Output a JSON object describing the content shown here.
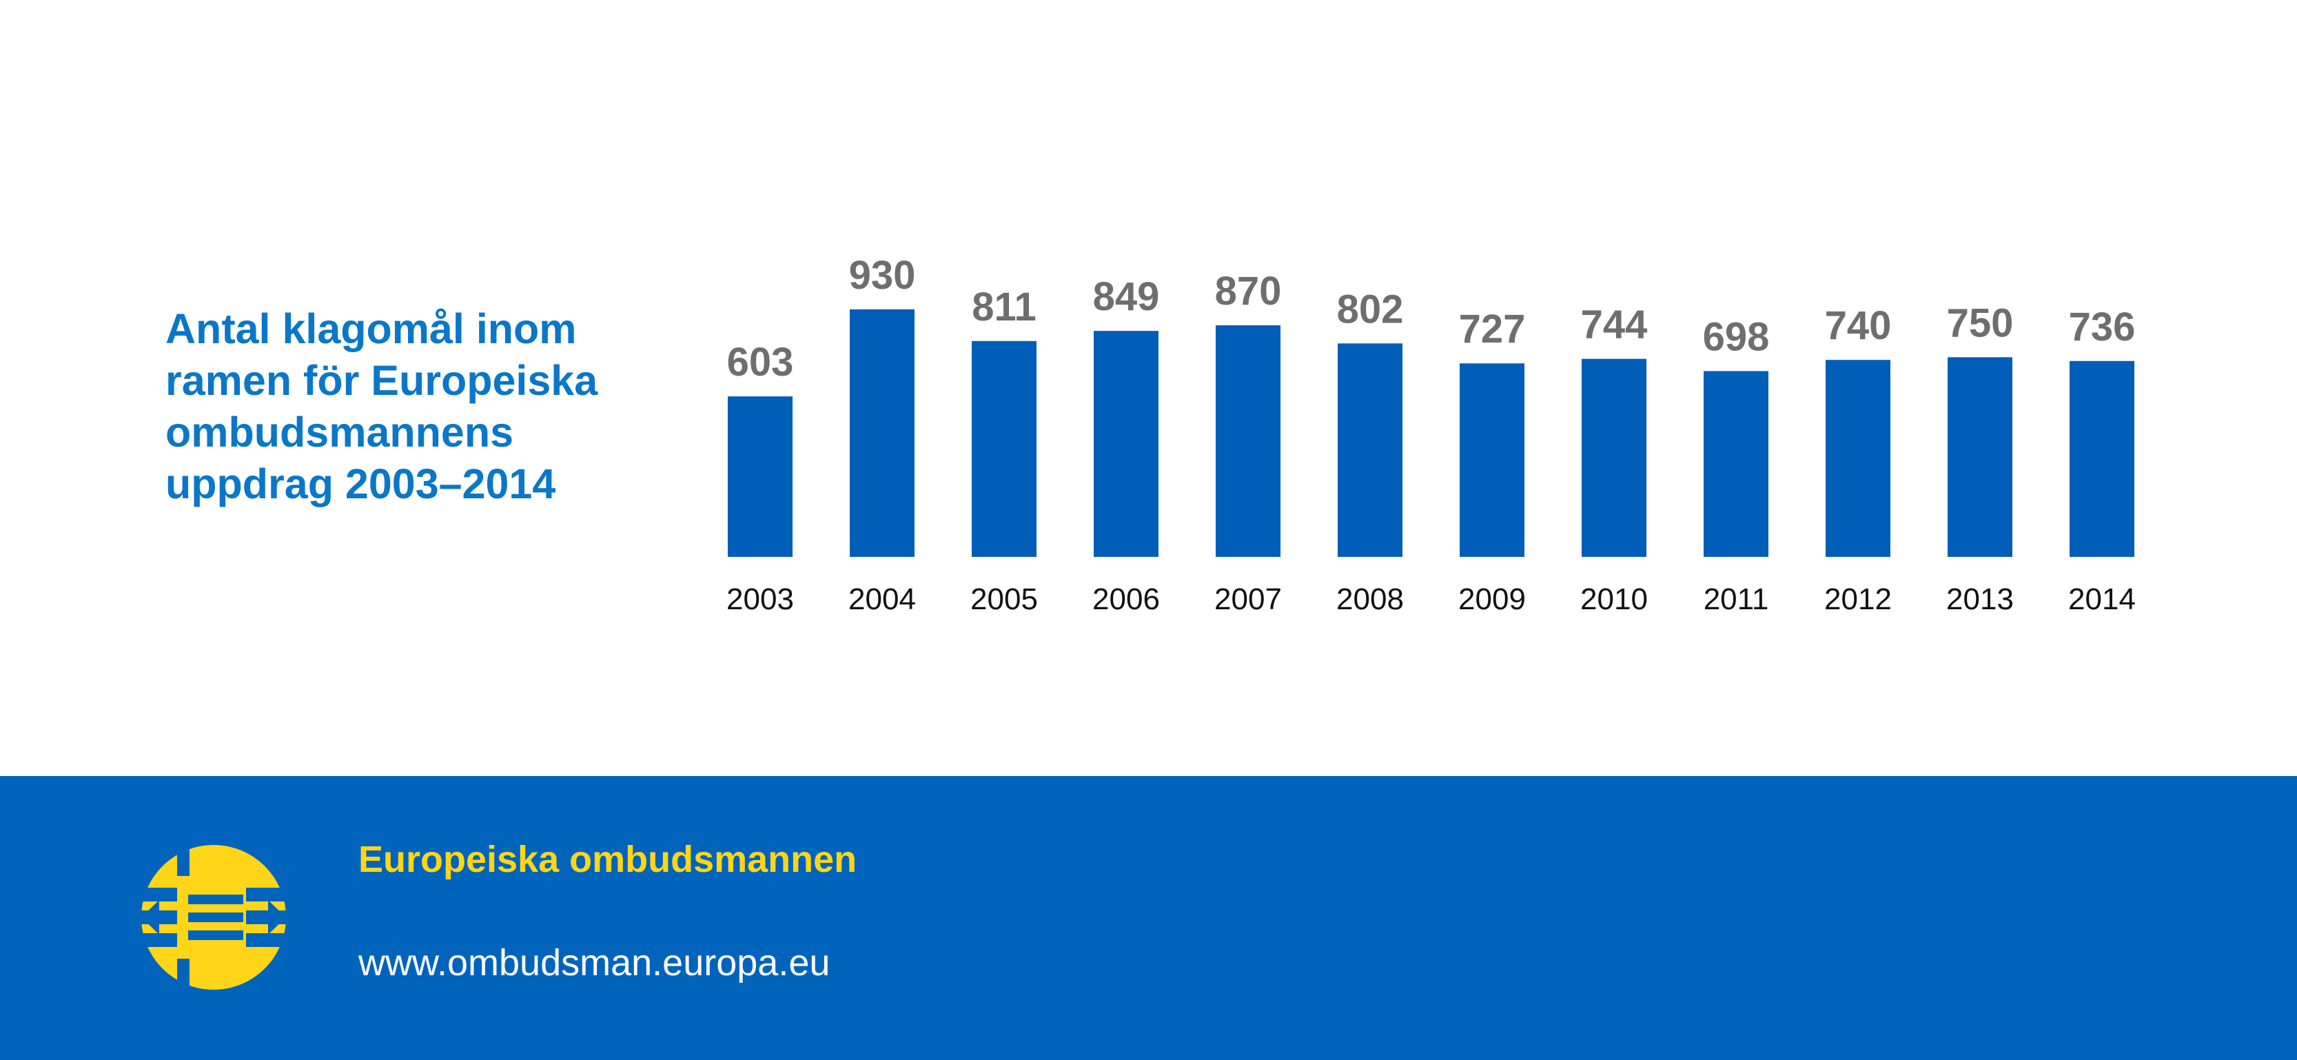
{
  "chart_data": {
    "type": "bar",
    "title": "Antal klagomål inom ramen för Europeiska ombudsmannens uppdrag 2003–2014",
    "categories": [
      "2003",
      "2004",
      "2005",
      "2006",
      "2007",
      "2008",
      "2009",
      "2010",
      "2011",
      "2012",
      "2013",
      "2014"
    ],
    "values": [
      603,
      930,
      811,
      849,
      870,
      802,
      727,
      744,
      698,
      740,
      750,
      736
    ],
    "xlabel": "",
    "ylabel": "",
    "ylim": [
      0,
      1000
    ],
    "grid": false,
    "data_labels": true,
    "colors": {
      "bar": "#005eb8",
      "value_label": "#6e6e6e",
      "title": "#0a77c8"
    }
  },
  "footer": {
    "org_name": "Europeiska ombudsmannen",
    "url": "www.ombudsman.europa.eu",
    "logo_icon": "european-ombudsman-logo-icon",
    "colors": {
      "background": "#0064bd",
      "org_name": "#ffd617",
      "url": "#ffffff"
    }
  }
}
